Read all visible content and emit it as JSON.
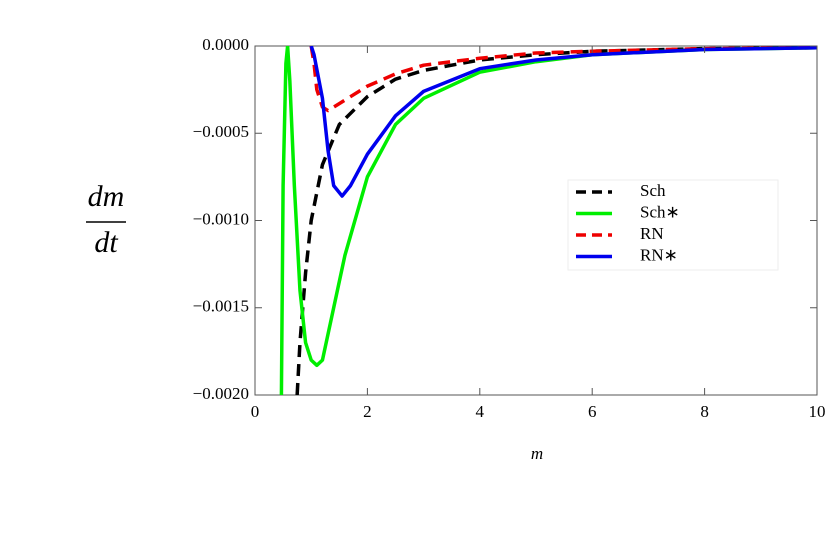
{
  "chart_data": {
    "type": "line",
    "x_label": "m",
    "y_label": {
      "numerator": "dm",
      "denominator": "dt"
    },
    "xlim": [
      0,
      10
    ],
    "ylim": [
      -0.002,
      0
    ],
    "xticks": [
      0,
      2,
      4,
      6,
      8,
      10
    ],
    "yticks": [
      {
        "value": 0,
        "label": "0.0000"
      },
      {
        "value": -0.0005,
        "label": "−0.0005"
      },
      {
        "value": -0.001,
        "label": "−0.0010"
      },
      {
        "value": -0.0015,
        "label": "−0.0015"
      },
      {
        "value": -0.002,
        "label": "−0.0020"
      }
    ],
    "legend_position": "right",
    "series": [
      {
        "name": "Sch",
        "color": "#000000",
        "dashed": true,
        "x": [
          0.75,
          0.8,
          0.9,
          1.0,
          1.2,
          1.5,
          2,
          2.5,
          3,
          4,
          5,
          6,
          8,
          10
        ],
        "values": [
          -0.002,
          -0.0017,
          -0.0013,
          -0.001,
          -0.00068,
          -0.00045,
          -0.00029,
          -0.00019,
          -0.00014,
          -8e-05,
          -5e-05,
          -3e-05,
          -1.5e-05,
          -1e-05
        ]
      },
      {
        "name": "Sch∗",
        "color": "#00ee00",
        "dashed": false,
        "x": [
          0.47,
          0.5,
          0.55,
          0.58,
          0.62,
          0.7,
          0.8,
          0.9,
          1.0,
          1.1,
          1.2,
          1.4,
          1.6,
          2.0,
          2.5,
          3,
          4,
          5,
          6,
          8,
          10
        ],
        "values": [
          -0.002,
          -0.0008,
          -0.0001,
          0,
          -0.0002,
          -0.0008,
          -0.0014,
          -0.0017,
          -0.0018,
          -0.00183,
          -0.0018,
          -0.0015,
          -0.0012,
          -0.00075,
          -0.00045,
          -0.0003,
          -0.00015,
          -9e-05,
          -5e-05,
          -2e-05,
          -1e-05
        ]
      },
      {
        "name": "RN",
        "color": "#ee0000",
        "dashed": true,
        "x": [
          1.0,
          1.05,
          1.1,
          1.2,
          1.3,
          1.5,
          2,
          2.5,
          3,
          4,
          5,
          6,
          8,
          10
        ],
        "values": [
          0,
          -0.0001,
          -0.00025,
          -0.00035,
          -0.00037,
          -0.00033,
          -0.00023,
          -0.00016,
          -0.00011,
          -7e-05,
          -4e-05,
          -3e-05,
          -1.5e-05,
          -1e-05
        ]
      },
      {
        "name": "RN∗",
        "color": "#0000ee",
        "dashed": false,
        "x": [
          1.0,
          1.05,
          1.2,
          1.3,
          1.4,
          1.55,
          1.7,
          2,
          2.5,
          3,
          4,
          5,
          6,
          8,
          10
        ],
        "values": [
          0,
          -5e-05,
          -0.0003,
          -0.0006,
          -0.0008,
          -0.00086,
          -0.0008,
          -0.00062,
          -0.0004,
          -0.00026,
          -0.00013,
          -8e-05,
          -5e-05,
          -2e-05,
          -1e-05
        ]
      }
    ]
  }
}
